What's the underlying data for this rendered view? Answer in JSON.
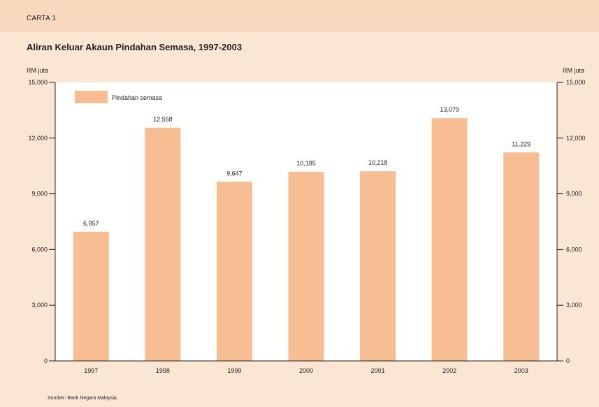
{
  "header": {
    "chart_label": "CARTA 1"
  },
  "title": "Aliran Keluar Akaun Pindahan Semasa, 1997-2003",
  "source": "Sumber:  Bank Negara Malaysia.",
  "colors": {
    "bar": "#f6be92",
    "plot_bg": "#ffffff",
    "axis": "#231f20",
    "page_bg": "#fbe6d3",
    "header_bg": "#f8d9bd"
  },
  "chart_data": {
    "type": "bar",
    "categories": [
      "1997",
      "1998",
      "1999",
      "2000",
      "2001",
      "2002",
      "2003"
    ],
    "series": [
      {
        "name": "Pindahan semasa",
        "values": [
          6957,
          12558,
          9647,
          10185,
          10218,
          13079,
          11229
        ]
      }
    ],
    "data_labels": [
      "6,957",
      "12,558",
      "9,647",
      "10,185",
      "10,218",
      "13,079",
      "11,229"
    ],
    "ylabel_left": "RM juta",
    "ylabel_right": "RM juta",
    "ylim": [
      0,
      15000
    ],
    "yticks": [
      0,
      3000,
      6000,
      9000,
      12000,
      15000
    ],
    "ytick_labels": [
      "0",
      "3,000",
      "6,000",
      "9,000",
      "12,000",
      "15,000"
    ],
    "grid": false,
    "legend_position": "top-left"
  }
}
